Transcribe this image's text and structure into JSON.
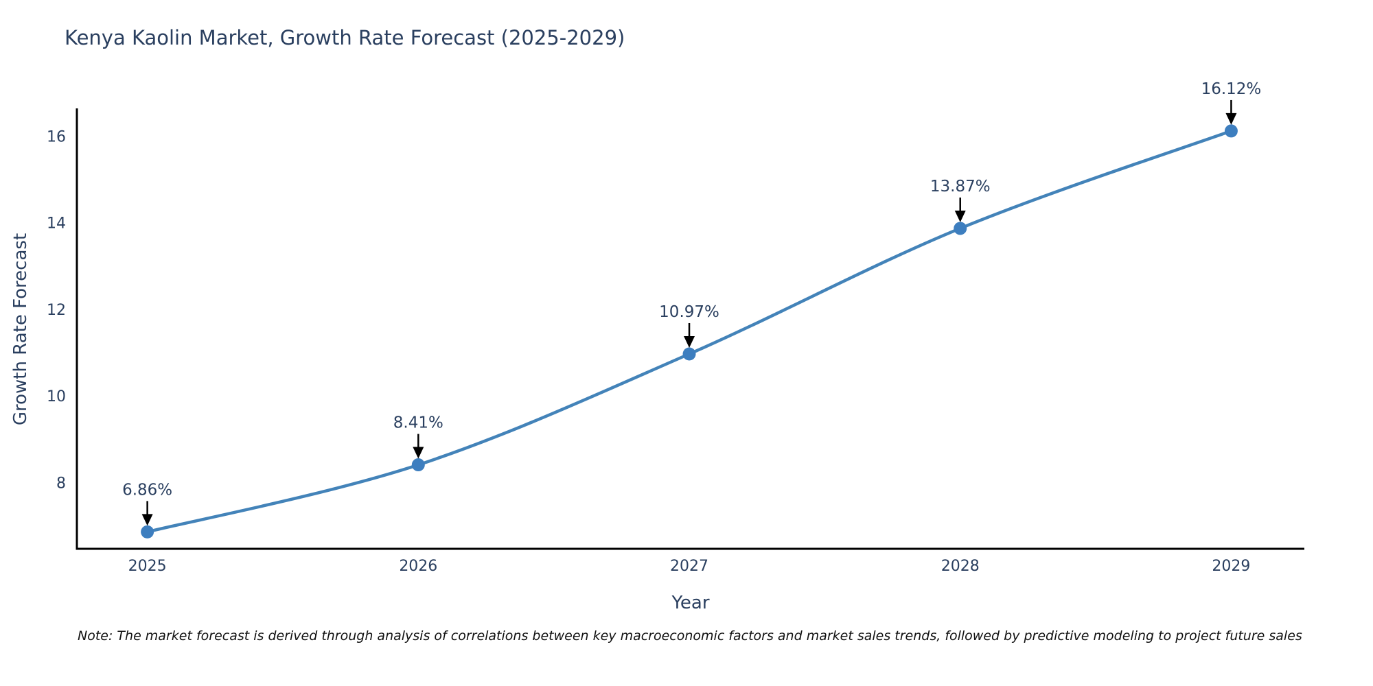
{
  "chart_data": {
    "type": "line",
    "title": "Kenya Kaolin Market, Growth Rate Forecast (2025-2029)",
    "xlabel": "Year",
    "ylabel": "Growth Rate Forecast",
    "x": [
      2025,
      2026,
      2027,
      2028,
      2029
    ],
    "y": [
      6.86,
      8.41,
      10.97,
      13.87,
      16.12
    ],
    "point_labels": [
      "6.86%",
      "8.41%",
      "10.97%",
      "13.87%",
      "16.12%"
    ],
    "series_name": "Growth Rate Forecast",
    "xticks": [
      "2025",
      "2026",
      "2027",
      "2028",
      "2029"
    ],
    "xtick_values": [
      2025,
      2026,
      2027,
      2028,
      2029
    ],
    "yticks": [
      "8",
      "10",
      "12",
      "14",
      "16"
    ],
    "ytick_values": [
      8,
      10,
      12,
      14,
      16
    ],
    "xlim": [
      2024.74,
      2029.27
    ],
    "ylim": [
      6.47,
      16.61
    ],
    "grid": false,
    "legend": false,
    "line_shape": "spline",
    "annotation_arrows": "down",
    "colors": {
      "line": "#4383b9",
      "marker": "#3d7ebf",
      "axis": "#000000",
      "tick_text": "#2a3f5f",
      "annotation_text": "#2a3f5f",
      "annotation_arrow": "#000000",
      "background": "#ffffff"
    }
  },
  "note": {
    "text": "Note: The market forecast is derived through analysis of correlations between key macroeconomic factors and market sales trends, followed by predictive modeling to project future sales"
  }
}
